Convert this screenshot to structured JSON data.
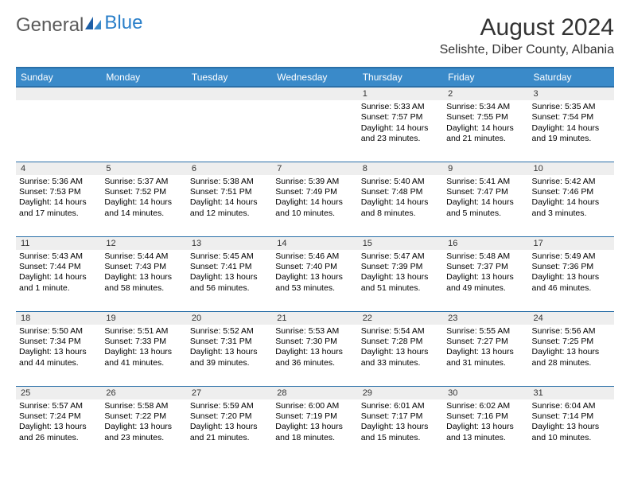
{
  "logo": {
    "general": "General",
    "blue": "Blue"
  },
  "header": {
    "month_title": "August 2024",
    "location": "Selishte, Diber County, Albania"
  },
  "weekdays": [
    "Sunday",
    "Monday",
    "Tuesday",
    "Wednesday",
    "Thursday",
    "Friday",
    "Saturday"
  ],
  "colors": {
    "header_bg": "#3a8ac9",
    "header_border": "#2a6fa8",
    "daynum_bg": "#eeeeee",
    "text": "#000000",
    "page_bg": "#ffffff",
    "logo_gray": "#5a5a5a",
    "logo_blue": "#2a7fc9"
  },
  "typography": {
    "title_fontsize": 30,
    "location_fontsize": 16,
    "weekday_fontsize": 12,
    "daynum_fontsize": 11,
    "body_fontsize": 10.5
  },
  "weeks": [
    [
      {
        "date": "",
        "sunrise": "",
        "sunset": "",
        "daylight": ""
      },
      {
        "date": "",
        "sunrise": "",
        "sunset": "",
        "daylight": ""
      },
      {
        "date": "",
        "sunrise": "",
        "sunset": "",
        "daylight": ""
      },
      {
        "date": "",
        "sunrise": "",
        "sunset": "",
        "daylight": ""
      },
      {
        "date": "1",
        "sunrise": "Sunrise: 5:33 AM",
        "sunset": "Sunset: 7:57 PM",
        "daylight": "Daylight: 14 hours and 23 minutes."
      },
      {
        "date": "2",
        "sunrise": "Sunrise: 5:34 AM",
        "sunset": "Sunset: 7:55 PM",
        "daylight": "Daylight: 14 hours and 21 minutes."
      },
      {
        "date": "3",
        "sunrise": "Sunrise: 5:35 AM",
        "sunset": "Sunset: 7:54 PM",
        "daylight": "Daylight: 14 hours and 19 minutes."
      }
    ],
    [
      {
        "date": "4",
        "sunrise": "Sunrise: 5:36 AM",
        "sunset": "Sunset: 7:53 PM",
        "daylight": "Daylight: 14 hours and 17 minutes."
      },
      {
        "date": "5",
        "sunrise": "Sunrise: 5:37 AM",
        "sunset": "Sunset: 7:52 PM",
        "daylight": "Daylight: 14 hours and 14 minutes."
      },
      {
        "date": "6",
        "sunrise": "Sunrise: 5:38 AM",
        "sunset": "Sunset: 7:51 PM",
        "daylight": "Daylight: 14 hours and 12 minutes."
      },
      {
        "date": "7",
        "sunrise": "Sunrise: 5:39 AM",
        "sunset": "Sunset: 7:49 PM",
        "daylight": "Daylight: 14 hours and 10 minutes."
      },
      {
        "date": "8",
        "sunrise": "Sunrise: 5:40 AM",
        "sunset": "Sunset: 7:48 PM",
        "daylight": "Daylight: 14 hours and 8 minutes."
      },
      {
        "date": "9",
        "sunrise": "Sunrise: 5:41 AM",
        "sunset": "Sunset: 7:47 PM",
        "daylight": "Daylight: 14 hours and 5 minutes."
      },
      {
        "date": "10",
        "sunrise": "Sunrise: 5:42 AM",
        "sunset": "Sunset: 7:46 PM",
        "daylight": "Daylight: 14 hours and 3 minutes."
      }
    ],
    [
      {
        "date": "11",
        "sunrise": "Sunrise: 5:43 AM",
        "sunset": "Sunset: 7:44 PM",
        "daylight": "Daylight: 14 hours and 1 minute."
      },
      {
        "date": "12",
        "sunrise": "Sunrise: 5:44 AM",
        "sunset": "Sunset: 7:43 PM",
        "daylight": "Daylight: 13 hours and 58 minutes."
      },
      {
        "date": "13",
        "sunrise": "Sunrise: 5:45 AM",
        "sunset": "Sunset: 7:41 PM",
        "daylight": "Daylight: 13 hours and 56 minutes."
      },
      {
        "date": "14",
        "sunrise": "Sunrise: 5:46 AM",
        "sunset": "Sunset: 7:40 PM",
        "daylight": "Daylight: 13 hours and 53 minutes."
      },
      {
        "date": "15",
        "sunrise": "Sunrise: 5:47 AM",
        "sunset": "Sunset: 7:39 PM",
        "daylight": "Daylight: 13 hours and 51 minutes."
      },
      {
        "date": "16",
        "sunrise": "Sunrise: 5:48 AM",
        "sunset": "Sunset: 7:37 PM",
        "daylight": "Daylight: 13 hours and 49 minutes."
      },
      {
        "date": "17",
        "sunrise": "Sunrise: 5:49 AM",
        "sunset": "Sunset: 7:36 PM",
        "daylight": "Daylight: 13 hours and 46 minutes."
      }
    ],
    [
      {
        "date": "18",
        "sunrise": "Sunrise: 5:50 AM",
        "sunset": "Sunset: 7:34 PM",
        "daylight": "Daylight: 13 hours and 44 minutes."
      },
      {
        "date": "19",
        "sunrise": "Sunrise: 5:51 AM",
        "sunset": "Sunset: 7:33 PM",
        "daylight": "Daylight: 13 hours and 41 minutes."
      },
      {
        "date": "20",
        "sunrise": "Sunrise: 5:52 AM",
        "sunset": "Sunset: 7:31 PM",
        "daylight": "Daylight: 13 hours and 39 minutes."
      },
      {
        "date": "21",
        "sunrise": "Sunrise: 5:53 AM",
        "sunset": "Sunset: 7:30 PM",
        "daylight": "Daylight: 13 hours and 36 minutes."
      },
      {
        "date": "22",
        "sunrise": "Sunrise: 5:54 AM",
        "sunset": "Sunset: 7:28 PM",
        "daylight": "Daylight: 13 hours and 33 minutes."
      },
      {
        "date": "23",
        "sunrise": "Sunrise: 5:55 AM",
        "sunset": "Sunset: 7:27 PM",
        "daylight": "Daylight: 13 hours and 31 minutes."
      },
      {
        "date": "24",
        "sunrise": "Sunrise: 5:56 AM",
        "sunset": "Sunset: 7:25 PM",
        "daylight": "Daylight: 13 hours and 28 minutes."
      }
    ],
    [
      {
        "date": "25",
        "sunrise": "Sunrise: 5:57 AM",
        "sunset": "Sunset: 7:24 PM",
        "daylight": "Daylight: 13 hours and 26 minutes."
      },
      {
        "date": "26",
        "sunrise": "Sunrise: 5:58 AM",
        "sunset": "Sunset: 7:22 PM",
        "daylight": "Daylight: 13 hours and 23 minutes."
      },
      {
        "date": "27",
        "sunrise": "Sunrise: 5:59 AM",
        "sunset": "Sunset: 7:20 PM",
        "daylight": "Daylight: 13 hours and 21 minutes."
      },
      {
        "date": "28",
        "sunrise": "Sunrise: 6:00 AM",
        "sunset": "Sunset: 7:19 PM",
        "daylight": "Daylight: 13 hours and 18 minutes."
      },
      {
        "date": "29",
        "sunrise": "Sunrise: 6:01 AM",
        "sunset": "Sunset: 7:17 PM",
        "daylight": "Daylight: 13 hours and 15 minutes."
      },
      {
        "date": "30",
        "sunrise": "Sunrise: 6:02 AM",
        "sunset": "Sunset: 7:16 PM",
        "daylight": "Daylight: 13 hours and 13 minutes."
      },
      {
        "date": "31",
        "sunrise": "Sunrise: 6:04 AM",
        "sunset": "Sunset: 7:14 PM",
        "daylight": "Daylight: 13 hours and 10 minutes."
      }
    ]
  ]
}
